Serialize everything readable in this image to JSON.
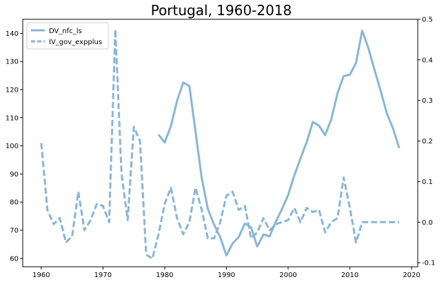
{
  "chart_data": {
    "type": "line",
    "title": "Portugal, 1960-2018",
    "xlabel": "",
    "ylabel_left": "",
    "ylabel_right": "",
    "xlim": [
      1957,
      2021
    ],
    "ylim_left": [
      57,
      145
    ],
    "ylim_right": [
      -0.11,
      0.5
    ],
    "x_ticks": [
      1960,
      1970,
      1980,
      1990,
      2000,
      2010,
      2020
    ],
    "y_ticks_left": [
      60,
      70,
      80,
      90,
      100,
      110,
      120,
      130,
      140
    ],
    "y_ticks_right": [
      -0.1,
      0.0,
      0.1,
      0.2,
      0.3,
      0.4,
      0.5
    ],
    "legend_location": "upper left",
    "grid": false,
    "line_color": "#87b5d6",
    "series": [
      {
        "name": "DV_nfc_ls",
        "axis": "left",
        "style": "solid",
        "x": [
          1979,
          1980,
          1981,
          1982,
          1983,
          1984,
          1985,
          1986,
          1987,
          1988,
          1989,
          1990,
          1991,
          1992,
          1993,
          1994,
          1995,
          1996,
          1997,
          1998,
          1999,
          2000,
          2001,
          2002,
          2003,
          2004,
          2005,
          2006,
          2007,
          2008,
          2009,
          2010,
          2011,
          2012,
          2013,
          2014,
          2015,
          2016,
          2017,
          2018
        ],
        "values": [
          104,
          101.2,
          107,
          116,
          122.5,
          121.3,
          105,
          88.5,
          77.5,
          72,
          67.5,
          61,
          65.3,
          67.6,
          72.4,
          71,
          64.2,
          68.5,
          67.8,
          73,
          77.5,
          82.5,
          89.5,
          95.5,
          101.3,
          108.5,
          107.2,
          103.8,
          109.5,
          118.7,
          124.8,
          125.3,
          129.5,
          141,
          134.8,
          127,
          119.5,
          111.5,
          106.2,
          99.2
        ]
      },
      {
        "name": "IV_gov_expplus",
        "axis": "right",
        "style": "dashed",
        "x": [
          1960,
          1961,
          1962,
          1963,
          1964,
          1965,
          1966,
          1967,
          1968,
          1969,
          1970,
          1971,
          1972,
          1973,
          1974,
          1975,
          1976,
          1977,
          1978,
          1979,
          1980,
          1981,
          1982,
          1983,
          1984,
          1985,
          1986,
          1987,
          1988,
          1989,
          1990,
          1991,
          1992,
          1993,
          1994,
          1995,
          1996,
          1997,
          1998,
          1999,
          2000,
          2001,
          2002,
          2003,
          2004,
          2005,
          2006,
          2007,
          2008,
          2009,
          2010,
          2011,
          2012,
          2013,
          2014,
          2015,
          2016,
          2017,
          2018
        ],
        "values": [
          0.195,
          0.03,
          -0.005,
          0.01,
          -0.05,
          -0.035,
          0.075,
          -0.02,
          0.005,
          0.045,
          0.04,
          0.0,
          0.475,
          0.12,
          0.005,
          0.235,
          0.2,
          -0.08,
          -0.09,
          -0.03,
          0.045,
          0.085,
          0.01,
          -0.03,
          0.0,
          0.085,
          0.03,
          -0.04,
          -0.04,
          0.0,
          0.065,
          0.075,
          0.03,
          0.04,
          -0.04,
          -0.025,
          0.01,
          -0.02,
          -0.005,
          0.0,
          0.005,
          0.035,
          0.0,
          0.035,
          0.025,
          0.03,
          -0.025,
          0.0,
          0.01,
          0.11,
          0.035,
          -0.05,
          0.0,
          0.0,
          0.0,
          0.0,
          0.0,
          0.0,
          0.0
        ]
      }
    ]
  }
}
